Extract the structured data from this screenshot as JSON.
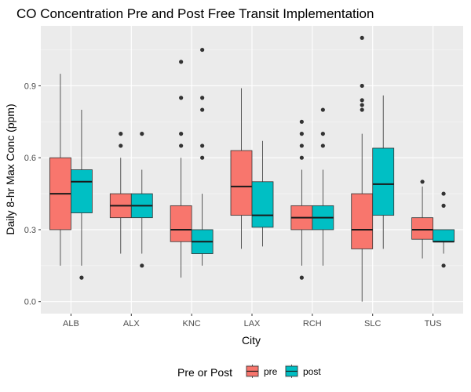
{
  "chart_data": {
    "type": "boxplot",
    "title": "CO Concentration Pre and Post Free Transit Implementation",
    "xlabel": "City",
    "ylabel": "Daily 8-hr Max Conc (ppm)",
    "categories": [
      "ALB",
      "ALX",
      "KNC",
      "LAX",
      "RCH",
      "SLC",
      "TUS"
    ],
    "y_ticks": [
      "0.0",
      "0.3",
      "0.6",
      "0.9"
    ],
    "ylim": [
      -0.05,
      1.15
    ],
    "grid": true,
    "legend": {
      "title": "Pre or Post",
      "position": "bottom",
      "entries": [
        {
          "label": "pre",
          "color": "#F8766D"
        },
        {
          "label": "post",
          "color": "#00BFC4"
        }
      ]
    },
    "series": [
      {
        "name": "pre",
        "color": "#F8766D",
        "boxes": [
          {
            "whisker_low": 0.15,
            "q1": 0.3,
            "median": 0.45,
            "q3": 0.6,
            "whisker_high": 0.95,
            "outliers": []
          },
          {
            "whisker_low": 0.2,
            "q1": 0.35,
            "median": 0.4,
            "q3": 0.45,
            "whisker_high": 0.6,
            "outliers": [
              0.65,
              0.7
            ]
          },
          {
            "whisker_low": 0.1,
            "q1": 0.25,
            "median": 0.3,
            "q3": 0.4,
            "whisker_high": 0.6,
            "outliers": [
              0.65,
              0.7,
              0.85,
              1.0
            ]
          },
          {
            "whisker_low": 0.22,
            "q1": 0.36,
            "median": 0.48,
            "q3": 0.63,
            "whisker_high": 0.89,
            "outliers": []
          },
          {
            "whisker_low": 0.15,
            "q1": 0.3,
            "median": 0.35,
            "q3": 0.4,
            "whisker_high": 0.55,
            "outliers": [
              0.1,
              0.6,
              0.65,
              0.7,
              0.75
            ]
          },
          {
            "whisker_low": 0.0,
            "q1": 0.22,
            "median": 0.3,
            "q3": 0.45,
            "whisker_high": 0.7,
            "outliers": [
              0.8,
              0.82,
              0.84,
              0.9,
              1.1
            ]
          },
          {
            "whisker_low": 0.18,
            "q1": 0.26,
            "median": 0.3,
            "q3": 0.35,
            "whisker_high": 0.48,
            "outliers": [
              0.5
            ]
          }
        ]
      },
      {
        "name": "post",
        "color": "#00BFC4",
        "boxes": [
          {
            "whisker_low": 0.15,
            "q1": 0.37,
            "median": 0.5,
            "q3": 0.55,
            "whisker_high": 0.8,
            "outliers": [
              0.1
            ]
          },
          {
            "whisker_low": 0.2,
            "q1": 0.35,
            "median": 0.4,
            "q3": 0.45,
            "whisker_high": 0.55,
            "outliers": [
              0.15,
              0.7
            ]
          },
          {
            "whisker_low": 0.15,
            "q1": 0.2,
            "median": 0.25,
            "q3": 0.3,
            "whisker_high": 0.45,
            "outliers": [
              0.6,
              0.65,
              0.8,
              0.85,
              1.05
            ]
          },
          {
            "whisker_low": 0.23,
            "q1": 0.31,
            "median": 0.36,
            "q3": 0.5,
            "whisker_high": 0.67,
            "outliers": []
          },
          {
            "whisker_low": 0.15,
            "q1": 0.3,
            "median": 0.35,
            "q3": 0.4,
            "whisker_high": 0.55,
            "outliers": [
              0.65,
              0.7,
              0.8
            ]
          },
          {
            "whisker_low": 0.22,
            "q1": 0.36,
            "median": 0.49,
            "q3": 0.64,
            "whisker_high": 0.86,
            "outliers": []
          },
          {
            "whisker_low": 0.2,
            "q1": 0.25,
            "median": 0.25,
            "q3": 0.3,
            "whisker_high": 0.3,
            "outliers": [
              0.15,
              0.4,
              0.45
            ]
          }
        ]
      }
    ]
  }
}
